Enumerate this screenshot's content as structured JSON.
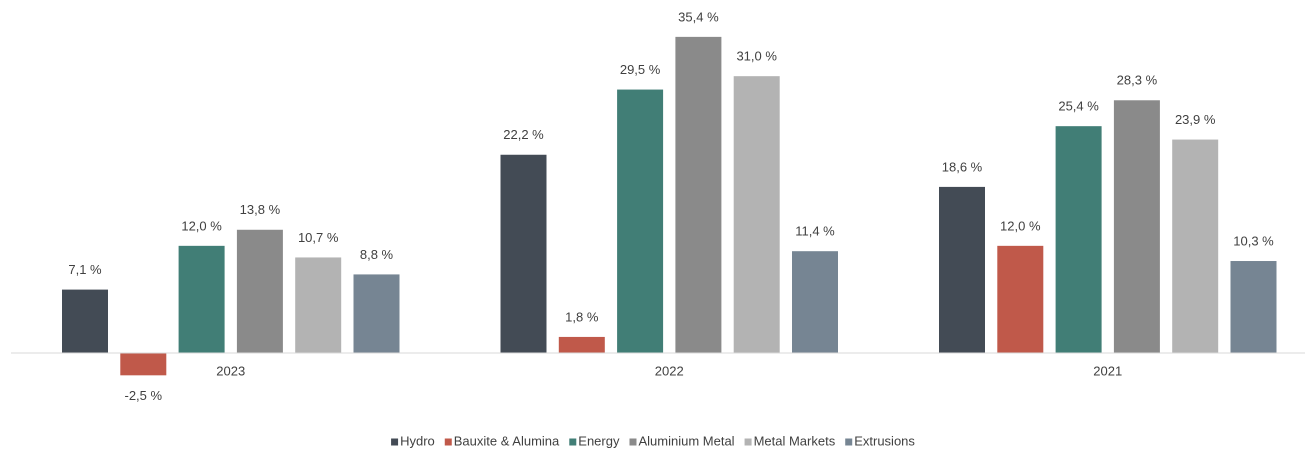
{
  "chart_data": {
    "type": "bar",
    "categories": [
      "2023",
      "2022",
      "2021"
    ],
    "series": [
      {
        "name": "Hydro",
        "color": "#434b55",
        "values": [
          7.1,
          22.2,
          18.6
        ],
        "value_labels": [
          "7,1 %",
          "22,2 %",
          "18,6 %"
        ]
      },
      {
        "name": "Bauxite & Alumina",
        "color": "#c0594a",
        "values": [
          -2.5,
          1.8,
          12.0
        ],
        "value_labels": [
          "-2,5 %",
          "1,8 %",
          "12,0 %"
        ]
      },
      {
        "name": "Energy",
        "color": "#417e76",
        "values": [
          12.0,
          29.5,
          25.4
        ],
        "value_labels": [
          "12,0 %",
          "29,5 %",
          "25,4 %"
        ]
      },
      {
        "name": "Aluminium Metal",
        "color": "#8a8a8a",
        "values": [
          13.8,
          35.4,
          28.3
        ],
        "value_labels": [
          "13,8 %",
          "35,4 %",
          "28,3 %"
        ]
      },
      {
        "name": "Metal Markets",
        "color": "#b3b3b3",
        "values": [
          10.7,
          31.0,
          23.9
        ],
        "value_labels": [
          "10,7 %",
          "31,0 %",
          "23,9 %"
        ]
      },
      {
        "name": "Extrusions",
        "color": "#768593",
        "values": [
          8.8,
          11.4,
          10.3
        ],
        "value_labels": [
          "8,8 %",
          "11,4 %",
          "10,3 %"
        ]
      }
    ]
  }
}
